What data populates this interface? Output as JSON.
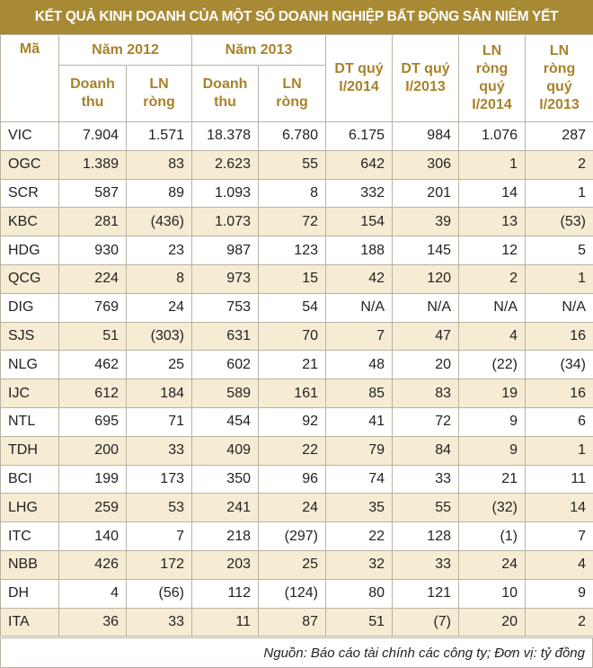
{
  "title": "KẾT QUẢ KINH DOANH CỦA MỘT SỐ DOANH NGHIỆP BẤT ĐỘNG SẢN NIÊM YẾT",
  "table": {
    "header": {
      "code": "Mã",
      "year_2012": "Năm 2012",
      "year_2013": "Năm 2013",
      "dt_q1_2014": "DT quý I/2014",
      "dt_q1_2013": "DT quý I/2013",
      "ln_q1_2014": "LN ròng quý I/2014",
      "ln_q1_2013": "LN ròng quý I/2013",
      "sub": [
        "Doanh thu",
        "LN ròng",
        "Doanh thu",
        "LN ròng"
      ]
    },
    "rows": [
      [
        "VIC",
        "7.904",
        "1.571",
        "18.378",
        "6.780",
        "6.175",
        "984",
        "1.076",
        "287"
      ],
      [
        "OGC",
        "1.389",
        "83",
        "2.623",
        "55",
        "642",
        "306",
        "1",
        "2"
      ],
      [
        "SCR",
        "587",
        "89",
        "1.093",
        "8",
        "332",
        "201",
        "14",
        "1"
      ],
      [
        "KBC",
        "281",
        "(436)",
        "1.073",
        "72",
        "154",
        "39",
        "13",
        "(53)"
      ],
      [
        "HDG",
        "930",
        "23",
        "987",
        "123",
        "188",
        "145",
        "12",
        "5"
      ],
      [
        "QCG",
        "224",
        "8",
        "973",
        "15",
        "42",
        "120",
        "2",
        "1"
      ],
      [
        "DIG",
        "769",
        "24",
        "753",
        "54",
        "N/A",
        "N/A",
        "N/A",
        "N/A"
      ],
      [
        "SJS",
        "51",
        "(303)",
        "631",
        "70",
        "7",
        "47",
        "4",
        "16"
      ],
      [
        "NLG",
        "462",
        "25",
        "602",
        "21",
        "48",
        "20",
        "(22)",
        "(34)"
      ],
      [
        "IJC",
        "612",
        "184",
        "589",
        "161",
        "85",
        "83",
        "19",
        "16"
      ],
      [
        "NTL",
        "695",
        "71",
        "454",
        "92",
        "41",
        "72",
        "9",
        "6"
      ],
      [
        "TDH",
        "200",
        "33",
        "409",
        "22",
        "79",
        "84",
        "9",
        "1"
      ],
      [
        "BCI",
        "199",
        "173",
        "350",
        "96",
        "74",
        "33",
        "21",
        "11"
      ],
      [
        "LHG",
        "259",
        "53",
        "241",
        "24",
        "35",
        "55",
        "(32)",
        "14"
      ],
      [
        "ITC",
        "140",
        "7",
        "218",
        "(297)",
        "22",
        "128",
        "(1)",
        "7"
      ],
      [
        "NBB",
        "426",
        "172",
        "203",
        "25",
        "32",
        "33",
        "24",
        "4"
      ],
      [
        "DH",
        "4",
        "(56)",
        "112",
        "(124)",
        "80",
        "121",
        "10",
        "9"
      ],
      [
        "ITA",
        "36",
        "33",
        "11",
        "87",
        "51",
        "(7)",
        "20",
        "2"
      ]
    ]
  },
  "footer": "Nguồn: Báo cáo tài chính các công ty; Đơn vị: tỷ đồng"
}
